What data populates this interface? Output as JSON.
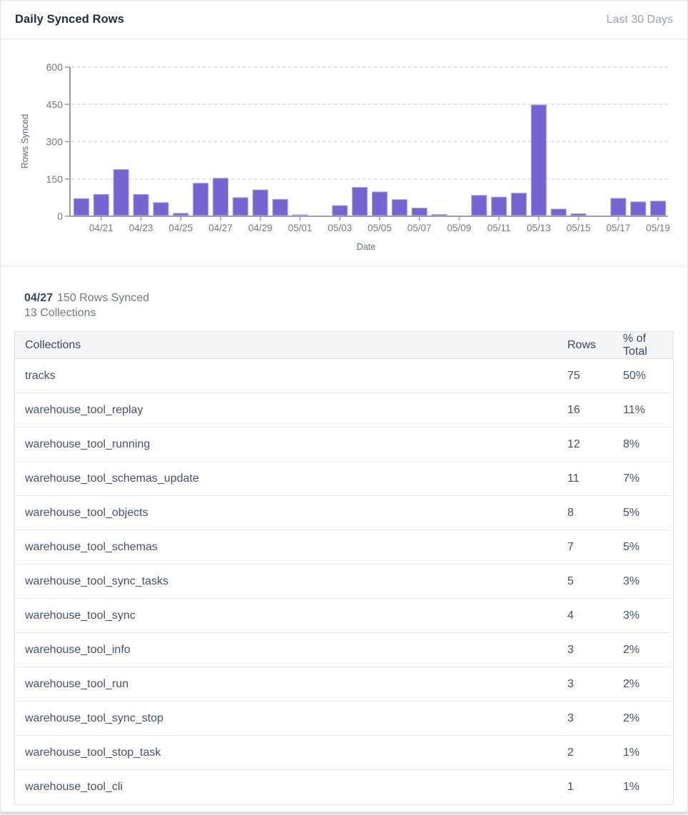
{
  "header": {
    "title": "Daily Synced Rows",
    "range_label": "Last 30 Days"
  },
  "colors": {
    "bar_fill": "#7565d2",
    "bar_border": "#a99fe4",
    "axis_line": "#9b9da1",
    "gridline": "#d9d9d9",
    "axis_tick_text": "#77797c",
    "axis_title_text": "#5e6c84",
    "title_text": "#1c2b41",
    "table_text": "#42526e"
  },
  "chart_data": {
    "type": "bar",
    "title": "Daily Synced Rows",
    "xlabel": "Date",
    "ylabel": "Rows Synced",
    "ylim": [
      0,
      600
    ],
    "yticks": [
      0,
      150,
      300,
      450,
      600
    ],
    "grid": "horizontal-dashed",
    "legend": "none",
    "x": [
      "04/20",
      "04/21",
      "04/22",
      "04/23",
      "04/24",
      "04/25",
      "04/26",
      "04/27",
      "04/28",
      "04/29",
      "04/30",
      "05/01",
      "05/02",
      "05/03",
      "05/04",
      "05/05",
      "05/06",
      "05/07",
      "05/08",
      "05/09",
      "05/10",
      "05/11",
      "05/12",
      "05/13",
      "05/14",
      "05/15",
      "05/16",
      "05/17",
      "05/18",
      "05/19"
    ],
    "values": [
      68,
      85,
      185,
      85,
      52,
      9,
      130,
      150,
      72,
      103,
      65,
      2,
      0,
      40,
      113,
      95,
      64,
      30,
      4,
      0,
      81,
      74,
      90,
      445,
      26,
      7,
      0,
      69,
      55,
      58
    ],
    "x_tick_labels": [
      "04/21",
      "04/23",
      "04/25",
      "04/27",
      "04/29",
      "05/01",
      "05/03",
      "05/05",
      "05/07",
      "05/09",
      "05/11",
      "05/13",
      "05/15",
      "05/17",
      "05/19"
    ]
  },
  "tooltip": {
    "date": "04/27",
    "rows_text": "150 Rows Synced",
    "collections_text": "13 Collections"
  },
  "table": {
    "columns": [
      "Collections",
      "Rows",
      "% of Total"
    ],
    "rows": [
      {
        "name": "tracks",
        "rows": "75",
        "pct": "50%"
      },
      {
        "name": "warehouse_tool_replay",
        "rows": "16",
        "pct": "11%"
      },
      {
        "name": "warehouse_tool_running",
        "rows": "12",
        "pct": "8%"
      },
      {
        "name": "warehouse_tool_schemas_update",
        "rows": "11",
        "pct": "7%"
      },
      {
        "name": "warehouse_tool_objects",
        "rows": "8",
        "pct": "5%"
      },
      {
        "name": "warehouse_tool_schemas",
        "rows": "7",
        "pct": "5%"
      },
      {
        "name": "warehouse_tool_sync_tasks",
        "rows": "5",
        "pct": "3%"
      },
      {
        "name": "warehouse_tool_sync",
        "rows": "4",
        "pct": "3%"
      },
      {
        "name": "warehouse_tool_info",
        "rows": "3",
        "pct": "2%"
      },
      {
        "name": "warehouse_tool_run",
        "rows": "3",
        "pct": "2%"
      },
      {
        "name": "warehouse_tool_sync_stop",
        "rows": "3",
        "pct": "2%"
      },
      {
        "name": "warehouse_tool_stop_task",
        "rows": "2",
        "pct": "1%"
      },
      {
        "name": "warehouse_tool_cli",
        "rows": "1",
        "pct": "1%"
      }
    ]
  }
}
